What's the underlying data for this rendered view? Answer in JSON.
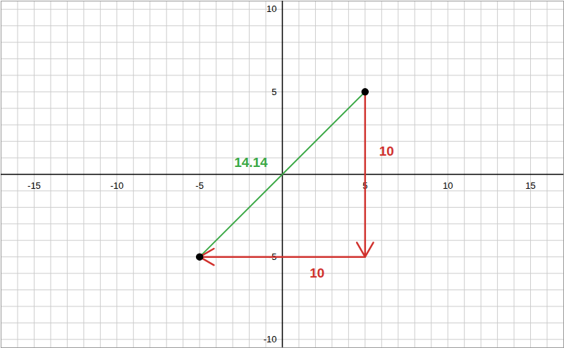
{
  "chart_data": {
    "type": "line",
    "xlim": [
      -17,
      17
    ],
    "ylim": [
      -10.5,
      10.5
    ],
    "xticks": [
      -15,
      -10,
      -5,
      5,
      10,
      15
    ],
    "yticks": [
      -10,
      -5,
      5,
      10
    ],
    "grid": true,
    "series": [
      {
        "type": "line",
        "color": "#3aa845",
        "x": [
          -5,
          5
        ],
        "values": [
          -5,
          5
        ]
      },
      {
        "type": "arrow",
        "color": "#d0312d",
        "x": [
          5,
          5
        ],
        "values": [
          5,
          -5
        ]
      },
      {
        "type": "arrow",
        "color": "#d0312d",
        "x": [
          5,
          -5
        ],
        "values": [
          -5,
          -5
        ]
      },
      {
        "type": "scatter",
        "color": "#000000",
        "marker": "circle",
        "x": [
          5,
          -5
        ],
        "values": [
          5,
          -5
        ]
      }
    ],
    "annotations": [
      {
        "text": "14.14",
        "x": -1.9,
        "y": 0.7,
        "color": "#3aa845"
      },
      {
        "text": "10",
        "x": 6.3,
        "y": 1.4,
        "color": "#d0312d"
      },
      {
        "text": "10",
        "x": 2.1,
        "y": -6.0,
        "color": "#d0312d"
      }
    ]
  }
}
